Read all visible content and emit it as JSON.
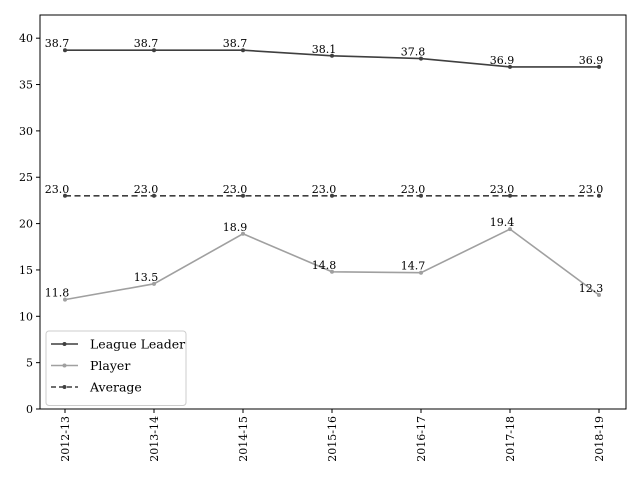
{
  "chart_data": {
    "type": "line",
    "categories": [
      "2012-13",
      "2013-14",
      "2014-15",
      "2015-16",
      "2016-17",
      "2017-18",
      "2018-19"
    ],
    "series": [
      {
        "name": "League Leader",
        "values": [
          38.7,
          38.7,
          38.7,
          38.1,
          37.8,
          36.9,
          36.9
        ],
        "color": "#3f3f3f",
        "dash": "solid"
      },
      {
        "name": "Player",
        "values": [
          11.8,
          13.5,
          18.9,
          14.8,
          14.7,
          19.4,
          12.3
        ],
        "color": "#a0a0a0",
        "dash": "solid"
      },
      {
        "name": "Average",
        "values": [
          23.0,
          23.0,
          23.0,
          23.0,
          23.0,
          23.0,
          23.0
        ],
        "color": "#3f3f3f",
        "dash": "dashed"
      }
    ],
    "title": "",
    "xlabel": "",
    "ylabel": "",
    "ylim": [
      0,
      42.5
    ],
    "yticks": [
      0,
      5,
      10,
      15,
      20,
      25,
      30,
      35,
      40
    ],
    "grid": false,
    "legend": "lower-left",
    "data_labels": true
  }
}
